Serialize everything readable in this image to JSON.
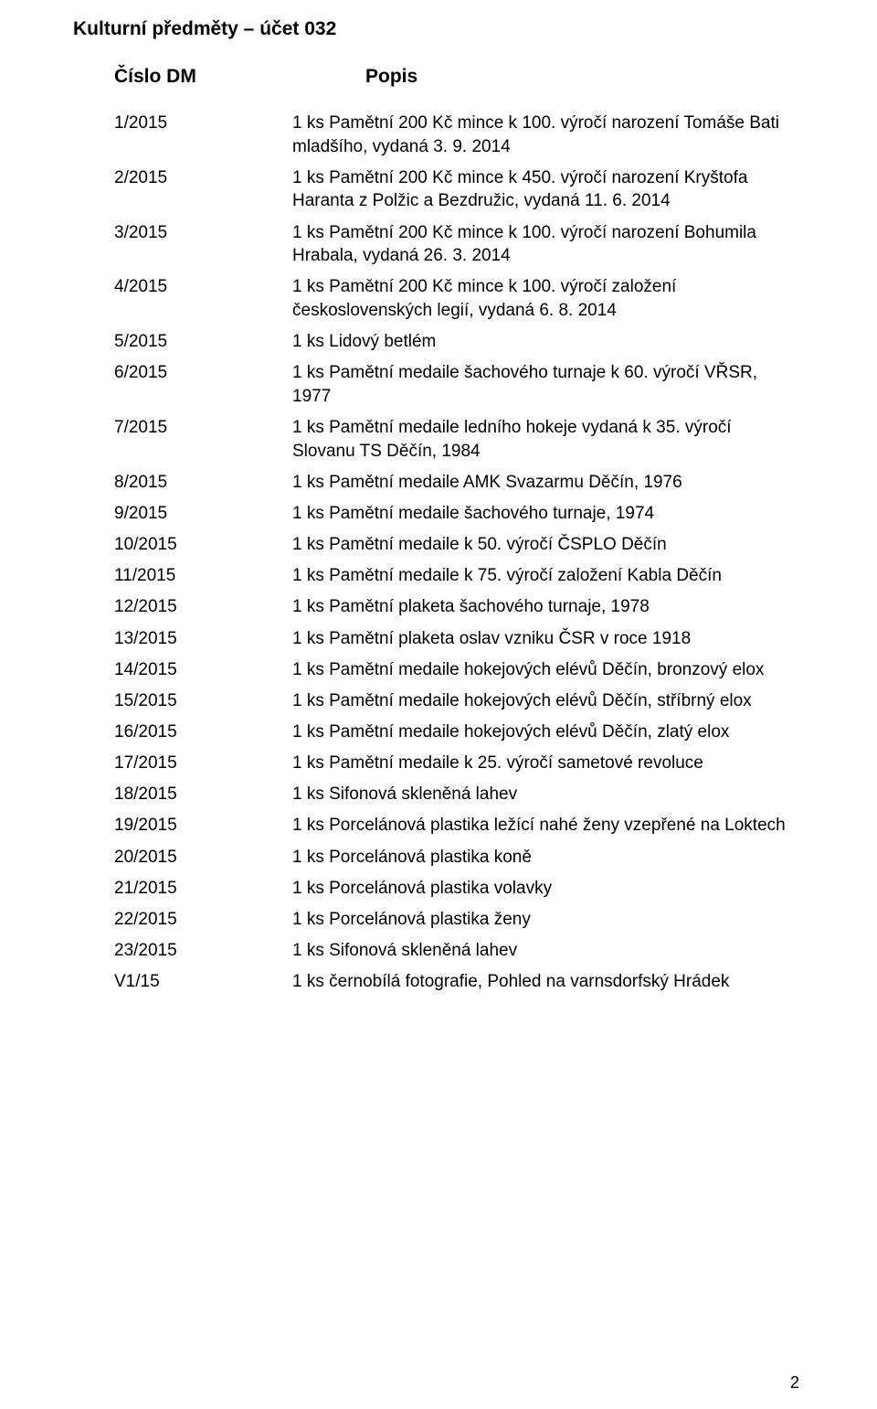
{
  "title": "Kulturní předměty – účet 032",
  "headers": {
    "id": "Číslo DM",
    "desc": "Popis"
  },
  "page_number": "2",
  "background_color": "#ffffff",
  "text_color": "#000000",
  "font_family": "Arial",
  "title_fontsize": 21,
  "header_fontsize": 21,
  "row_fontsize": 19,
  "rows": [
    {
      "id": "1/2015",
      "desc": "1 ks Pamětní 200 Kč mince k 100. výročí narození Tomáše Bati mladšího, vydaná 3. 9. 2014"
    },
    {
      "id": "2/2015",
      "desc": "1 ks Pamětní 200 Kč mince k 450. výročí narození Kryštofa Haranta z Polžic a Bezdružic, vydaná 11. 6. 2014"
    },
    {
      "id": "3/2015",
      "desc": "1 ks Pamětní 200 Kč mince k 100. výročí narození Bohumila Hrabala, vydaná 26. 3. 2014"
    },
    {
      "id": "4/2015",
      "desc": "1 ks Pamětní 200 Kč mince k 100. výročí založení československých legií, vydaná 6. 8. 2014"
    },
    {
      "id": "5/2015",
      "desc": "1 ks Lidový betlém"
    },
    {
      "id": "6/2015",
      "desc": "1 ks Pamětní medaile šachového turnaje k 60. výročí VŘSR, 1977"
    },
    {
      "id": "7/2015",
      "desc": "1 ks Pamětní medaile ledního hokeje vydaná k 35. výročí Slovanu TS Děčín, 1984"
    },
    {
      "id": "8/2015",
      "desc": "1 ks Pamětní medaile AMK Svazarmu Děčín, 1976"
    },
    {
      "id": "9/2015",
      "desc": "1 ks Pamětní medaile šachového turnaje, 1974"
    },
    {
      "id": "10/2015",
      "desc": "1 ks Pamětní medaile k 50. výročí ČSPLO Děčín"
    },
    {
      "id": "11/2015",
      "desc": "1 ks Pamětní medaile k 75. výročí založení Kabla Děčín"
    },
    {
      "id": "12/2015",
      "desc": "1 ks Pamětní plaketa šachového turnaje, 1978"
    },
    {
      "id": "13/2015",
      "desc": "1 ks Pamětní plaketa oslav vzniku ČSR v roce 1918"
    },
    {
      "id": "14/2015",
      "desc": "1 ks Pamětní medaile hokejových elévů Děčín, bronzový elox"
    },
    {
      "id": "15/2015",
      "desc": "1 ks Pamětní medaile hokejových elévů Děčín, stříbrný elox"
    },
    {
      "id": "16/2015",
      "desc": "1 ks Pamětní medaile hokejových elévů Děčín, zlatý elox"
    },
    {
      "id": "17/2015",
      "desc": "1 ks Pamětní medaile k 25. výročí sametové revoluce"
    },
    {
      "id": "18/2015",
      "desc": "1 ks Sifonová skleněná lahev"
    },
    {
      "id": "19/2015",
      "desc": "1 ks Porcelánová plastika ležící nahé ženy vzepřené na Loktech"
    },
    {
      "id": "20/2015",
      "desc": "1 ks Porcelánová plastika koně"
    },
    {
      "id": "21/2015",
      "desc": "1 ks Porcelánová plastika volavky"
    },
    {
      "id": "22/2015",
      "desc": "1 ks Porcelánová plastika ženy"
    },
    {
      "id": "23/2015",
      "desc": "1 ks Sifonová skleněná lahev"
    },
    {
      "id": "V1/15",
      "desc": "1 ks černobílá fotografie, Pohled na varnsdorfský Hrádek"
    }
  ]
}
